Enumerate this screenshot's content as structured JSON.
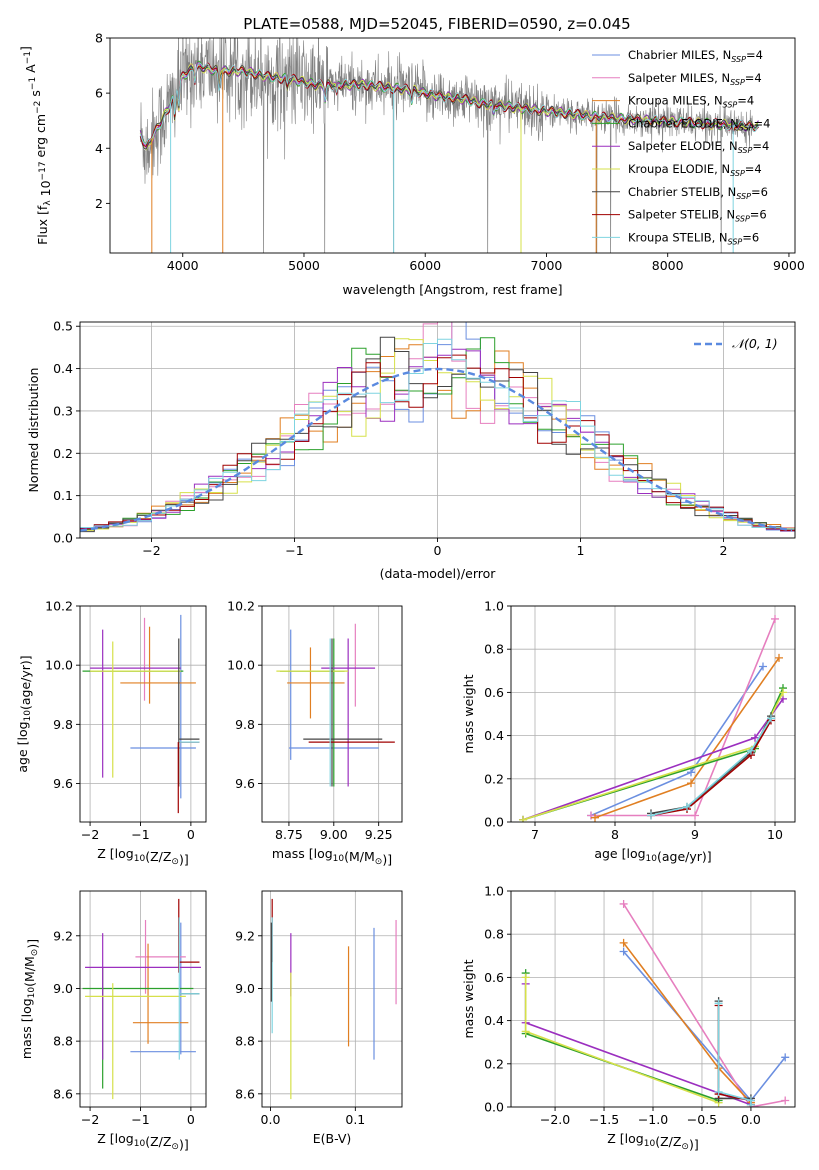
{
  "figure": {
    "title": "PLATE=0588, MJD=52045, FIBERID=0590, z=0.045"
  },
  "colors": {
    "Chabrier MILES": "#6b8fe0",
    "Salpeter MILES": "#e67fbf",
    "Kroupa MILES": "#e07f22",
    "Chabrier ELODIE": "#2ca02c",
    "Salpeter ELODIE": "#9b2fbf",
    "Kroupa ELODIE": "#d6e04a",
    "Chabrier STELIB": "#444444",
    "Salpeter STELIB": "#a00000",
    "Kroupa STELIB": "#7fd4e0",
    "gaussian": "#5a8ae0",
    "data_spectrum": "#7f7f7f"
  },
  "chart_data": [
    {
      "type": "line",
      "panel": "spectrum",
      "xlabel": "wavelength [Angstrom, rest frame]",
      "ylabel": "Flux [f_λ 10^-17 erg cm^-2 s^-1 A^-1]",
      "xlim": [
        3400,
        9050
      ],
      "ylim": [
        0.2,
        8
      ],
      "xticks": [
        4000,
        5000,
        6000,
        7000,
        8000,
        9000
      ],
      "yticks": [
        2,
        4,
        6,
        8
      ],
      "legend_position": "upper-right",
      "legend": [
        {
          "name": "Chabrier MILES",
          "nssp": "4"
        },
        {
          "name": "Salpeter MILES",
          "nssp": "4"
        },
        {
          "name": "Kroupa MILES",
          "nssp": "4"
        },
        {
          "name": "Chabrier ELODIE",
          "nssp": "4"
        },
        {
          "name": "Salpeter ELODIE",
          "nssp": "4"
        },
        {
          "name": "Kroupa ELODIE",
          "nssp": "4"
        },
        {
          "name": "Chabrier STELIB",
          "nssp": "6"
        },
        {
          "name": "Salpeter STELIB",
          "nssp": "6"
        },
        {
          "name": "Kroupa STELIB",
          "nssp": "6"
        }
      ],
      "continuum": {
        "x": [
          3650,
          3700,
          3800,
          3900,
          4000,
          4100,
          4200,
          4300,
          4500,
          4700,
          4900,
          5100,
          5300,
          5500,
          5700,
          5900,
          6100,
          6300,
          6500,
          6700,
          6900,
          7100,
          7300,
          7500,
          7700,
          7900,
          8100,
          8300,
          8500,
          8700
        ],
        "y": [
          4.5,
          4.0,
          4.8,
          5.6,
          6.6,
          7.0,
          6.9,
          6.8,
          6.8,
          6.6,
          6.5,
          6.3,
          6.3,
          6.3,
          6.2,
          6.1,
          5.9,
          5.8,
          5.6,
          5.5,
          5.4,
          5.3,
          5.2,
          5.1,
          5.05,
          5.0,
          4.95,
          4.9,
          4.85,
          4.8
        ]
      }
    },
    {
      "type": "histogram",
      "panel": "residuals",
      "xlabel": "(data-model)/error",
      "ylabel": "Normed distribution",
      "xlim": [
        -2.5,
        2.5
      ],
      "ylim": [
        0,
        0.51
      ],
      "xticks": [
        -2,
        -1,
        0,
        1,
        2
      ],
      "yticks": [
        0.0,
        0.1,
        0.2,
        0.3,
        0.4,
        0.5
      ],
      "grid": true,
      "legend_position": "upper-right",
      "reference_curve": "𝒩(0, 1)",
      "bin_width": 0.1,
      "series_order": [
        "Chabrier MILES",
        "Salpeter MILES",
        "Kroupa MILES",
        "Chabrier ELODIE",
        "Salpeter ELODIE",
        "Kroupa ELODIE",
        "Chabrier STELIB",
        "Salpeter STELIB",
        "Kroupa STELIB"
      ]
    },
    {
      "type": "scatter",
      "panel": "age_vs_Z",
      "xlabel": "Z [log10(Z/Z⊙)]",
      "ylabel": "age  [log10(age/yr)]",
      "xlim": [
        -2.2,
        0.3
      ],
      "ylim": [
        9.47,
        10.2
      ],
      "xticks": [
        -2,
        -1,
        0
      ],
      "yticks": [
        9.6,
        9.8,
        10.0,
        10.2
      ],
      "points": [
        {
          "series": "Chabrier MILES",
          "x": -0.55,
          "xerr": 0.65,
          "y": 9.72,
          "yerr": 0
        },
        {
          "series": "Chabrier MILES",
          "x": -0.2,
          "xerr": 0,
          "y": 9.86,
          "yerr": 0.31
        },
        {
          "series": "Salpeter MILES",
          "x": -0.92,
          "xerr": 0,
          "y": 10.02,
          "yerr": 0.14
        },
        {
          "series": "Kroupa MILES",
          "x": -0.65,
          "xerr": 0.75,
          "y": 9.94,
          "yerr": 0
        },
        {
          "series": "Kroupa MILES",
          "x": -0.82,
          "xerr": 0,
          "y": 10.0,
          "yerr": 0.13
        },
        {
          "series": "Chabrier ELODIE",
          "x": -1.15,
          "xerr": 1.0,
          "y": 9.98,
          "yerr": 0
        },
        {
          "series": "Salpeter ELODIE",
          "x": -1.1,
          "xerr": 0.9,
          "y": 9.99,
          "yerr": 0
        },
        {
          "series": "Salpeter ELODIE",
          "x": -1.75,
          "xerr": 0,
          "y": 9.87,
          "yerr": 0.25
        },
        {
          "series": "Kroupa ELODIE",
          "x": -1.1,
          "xerr": 0.9,
          "y": 9.98,
          "yerr": 0
        },
        {
          "series": "Kroupa ELODIE",
          "x": -1.55,
          "xerr": 0,
          "y": 9.85,
          "yerr": 0.23
        },
        {
          "series": "Chabrier STELIB",
          "x": -0.03,
          "xerr": 0.2,
          "y": 9.75,
          "yerr": 0
        },
        {
          "series": "Chabrier STELIB",
          "x": -0.24,
          "xerr": 0,
          "y": 9.84,
          "yerr": 0.25
        },
        {
          "series": "Salpeter STELIB",
          "x": -0.03,
          "xerr": 0.2,
          "y": 9.74,
          "yerr": 0
        },
        {
          "series": "Salpeter STELIB",
          "x": -0.25,
          "xerr": 0,
          "y": 9.62,
          "yerr": 0.12
        },
        {
          "series": "Kroupa STELIB",
          "x": -0.03,
          "xerr": 0.2,
          "y": 9.74,
          "yerr": 0
        }
      ]
    },
    {
      "type": "scatter",
      "panel": "age_vs_mass",
      "xlabel": "mass [log10(M/M⊙)]",
      "ylabel": "",
      "xlim": [
        8.6,
        9.38
      ],
      "ylim": [
        9.47,
        10.2
      ],
      "xticks": [
        8.75,
        9.0,
        9.25
      ],
      "yticks": [
        9.6,
        9.8,
        10.0,
        10.2
      ],
      "points": [
        {
          "series": "Chabrier MILES",
          "x": 9.0,
          "xerr": 0.25,
          "y": 9.72,
          "yerr": 0
        },
        {
          "series": "Chabrier MILES",
          "x": 8.76,
          "xerr": 0,
          "y": 9.9,
          "yerr": 0.22
        },
        {
          "series": "Salpeter MILES",
          "x": 9.12,
          "xerr": 0,
          "y": 10.0,
          "yerr": 0.14
        },
        {
          "series": "Kroupa MILES",
          "x": 8.9,
          "xerr": 0.16,
          "y": 9.94,
          "yerr": 0
        },
        {
          "series": "Kroupa MILES",
          "x": 8.87,
          "xerr": 0,
          "y": 9.94,
          "yerr": 0.12
        },
        {
          "series": "Chabrier ELODIE",
          "x": 8.88,
          "xerr": 0.18,
          "y": 9.98,
          "yerr": 0
        },
        {
          "series": "Chabrier ELODIE",
          "x": 9.0,
          "xerr": 0,
          "y": 9.84,
          "yerr": 0.25
        },
        {
          "series": "Salpeter ELODIE",
          "x": 9.08,
          "xerr": 0.15,
          "y": 9.99,
          "yerr": 0
        },
        {
          "series": "Salpeter ELODIE",
          "x": 9.08,
          "xerr": 0,
          "y": 9.84,
          "yerr": 0.25
        },
        {
          "series": "Kroupa ELODIE",
          "x": 8.88,
          "xerr": 0.2,
          "y": 9.98,
          "yerr": 0
        },
        {
          "series": "Chabrier STELIB",
          "x": 9.05,
          "xerr": 0.22,
          "y": 9.75,
          "yerr": 0
        },
        {
          "series": "Chabrier STELIB",
          "x": 8.99,
          "xerr": 0,
          "y": 9.84,
          "yerr": 0.25
        },
        {
          "series": "Salpeter STELIB",
          "x": 9.1,
          "xerr": 0.24,
          "y": 9.74,
          "yerr": 0
        },
        {
          "series": "Kroupa STELIB",
          "x": 8.98,
          "xerr": 0,
          "y": 9.84,
          "yerr": 0.25
        }
      ]
    },
    {
      "type": "line",
      "panel": "massweight_vs_age",
      "xlabel": "age  [log10(age/yr)]",
      "ylabel": "mass weight",
      "xlim": [
        6.7,
        10.25
      ],
      "ylim": [
        0,
        1.0
      ],
      "xticks": [
        7,
        8,
        9,
        10
      ],
      "yticks": [
        0.0,
        0.2,
        0.4,
        0.6,
        0.8,
        1.0
      ],
      "grid": true,
      "series": [
        {
          "name": "Chabrier MILES",
          "x": [
            7.7,
            8.95,
            9.85
          ],
          "y": [
            0.03,
            0.23,
            0.72
          ]
        },
        {
          "name": "Salpeter MILES",
          "x": [
            7.7,
            9.0,
            10.0
          ],
          "y": [
            0.03,
            0.03,
            0.94
          ]
        },
        {
          "name": "Kroupa MILES",
          "x": [
            7.75,
            8.95,
            10.05
          ],
          "y": [
            0.02,
            0.18,
            0.76
          ]
        },
        {
          "name": "Chabrier ELODIE",
          "x": [
            6.85,
            9.75,
            10.1
          ],
          "y": [
            0.01,
            0.34,
            0.62
          ]
        },
        {
          "name": "Salpeter ELODIE",
          "x": [
            6.85,
            9.75,
            10.1
          ],
          "y": [
            0.01,
            0.39,
            0.57
          ]
        },
        {
          "name": "Kroupa ELODIE",
          "x": [
            6.85,
            9.75,
            10.1
          ],
          "y": [
            0.01,
            0.35,
            0.6
          ]
        },
        {
          "name": "Chabrier STELIB",
          "x": [
            8.45,
            8.9,
            9.7,
            9.95
          ],
          "y": [
            0.04,
            0.07,
            0.32,
            0.49
          ]
        },
        {
          "name": "Salpeter STELIB",
          "x": [
            8.45,
            8.9,
            9.7,
            9.95
          ],
          "y": [
            0.03,
            0.06,
            0.31,
            0.47
          ]
        },
        {
          "name": "Kroupa STELIB",
          "x": [
            8.45,
            8.9,
            9.7,
            9.95
          ],
          "y": [
            0.03,
            0.07,
            0.33,
            0.48
          ]
        }
      ]
    },
    {
      "type": "scatter",
      "panel": "mass_vs_Z",
      "xlabel": "Z [log10(Z/Z⊙)]",
      "ylabel": "mass [log10(M/M⊙)]",
      "xlim": [
        -2.2,
        0.3
      ],
      "ylim": [
        8.55,
        9.37
      ],
      "xticks": [
        -2,
        -1,
        0
      ],
      "yticks": [
        8.6,
        8.8,
        9.0,
        9.2
      ],
      "points": [
        {
          "series": "Chabrier MILES",
          "x": -0.55,
          "xerr": 0.65,
          "y": 8.76,
          "yerr": 0
        },
        {
          "series": "Chabrier MILES",
          "x": -0.2,
          "xerr": 0,
          "y": 9.0,
          "yerr": 0.25
        },
        {
          "series": "Salpeter MILES",
          "x": -0.6,
          "xerr": 0.5,
          "y": 9.12,
          "yerr": 0
        },
        {
          "series": "Salpeter MILES",
          "x": -0.9,
          "xerr": 0,
          "y": 9.12,
          "yerr": 0.14
        },
        {
          "series": "Kroupa MILES",
          "x": -0.6,
          "xerr": 0.55,
          "y": 8.87,
          "yerr": 0
        },
        {
          "series": "Kroupa MILES",
          "x": -0.85,
          "xerr": 0,
          "y": 8.98,
          "yerr": 0.19
        },
        {
          "series": "Chabrier ELODIE",
          "x": -1.05,
          "xerr": 1.1,
          "y": 9.0,
          "yerr": 0
        },
        {
          "series": "Chabrier ELODIE",
          "x": -1.75,
          "xerr": 0,
          "y": 8.85,
          "yerr": 0.23
        },
        {
          "series": "Salpeter ELODIE",
          "x": -0.95,
          "xerr": 1.15,
          "y": 9.08,
          "yerr": 0
        },
        {
          "series": "Salpeter ELODIE",
          "x": -1.75,
          "xerr": 0,
          "y": 8.97,
          "yerr": 0.24
        },
        {
          "series": "Kroupa ELODIE",
          "x": -1.1,
          "xerr": 1.0,
          "y": 8.97,
          "yerr": 0
        },
        {
          "series": "Kroupa ELODIE",
          "x": -1.55,
          "xerr": 0,
          "y": 8.8,
          "yerr": 0.22
        },
        {
          "series": "Chabrier STELIB",
          "x": -0.03,
          "xerr": 0.2,
          "y": 8.98,
          "yerr": 0
        },
        {
          "series": "Salpeter STELIB",
          "x": -0.03,
          "xerr": 0.2,
          "y": 9.1,
          "yerr": 0
        },
        {
          "series": "Salpeter STELIB",
          "x": -0.24,
          "xerr": 0,
          "y": 9.2,
          "yerr": 0.14
        },
        {
          "series": "Kroupa STELIB",
          "x": -0.03,
          "xerr": 0.2,
          "y": 8.98,
          "yerr": 0
        },
        {
          "series": "Kroupa STELIB",
          "x": -0.23,
          "xerr": 0,
          "y": 9.0,
          "yerr": 0.27
        }
      ]
    },
    {
      "type": "scatter",
      "panel": "mass_vs_ebv",
      "xlabel": "E(B-V)",
      "ylabel": "",
      "xlim": [
        -0.01,
        0.155
      ],
      "ylim": [
        8.55,
        9.37
      ],
      "xticks": [
        0.0,
        0.1
      ],
      "yticks": [
        8.6,
        8.8,
        9.0,
        9.2
      ],
      "points": [
        {
          "series": "Salpeter MILES",
          "x": 0.148,
          "xerr": 0,
          "y": 9.1,
          "yerr": 0.16
        },
        {
          "series": "Chabrier MILES",
          "x": 0.122,
          "xerr": 0,
          "y": 8.98,
          "yerr": 0.25
        },
        {
          "series": "Kroupa MILES",
          "x": 0.092,
          "xerr": 0,
          "y": 8.97,
          "yerr": 0.19
        },
        {
          "series": "Salpeter ELODIE",
          "x": 0.024,
          "xerr": 0,
          "y": 9.09,
          "yerr": 0.12
        },
        {
          "series": "Kroupa ELODIE",
          "x": 0.024,
          "xerr": 0,
          "y": 8.82,
          "yerr": 0.24
        },
        {
          "series": "Salpeter STELIB",
          "x": 0.002,
          "xerr": 0,
          "y": 9.22,
          "yerr": 0.12
        },
        {
          "series": "Kroupa STELIB",
          "x": 0.002,
          "xerr": 0,
          "y": 9.05,
          "yerr": 0.22
        },
        {
          "series": "Chabrier STELIB",
          "x": 0.001,
          "xerr": 0,
          "y": 9.1,
          "yerr": 0.15
        }
      ]
    },
    {
      "type": "line",
      "panel": "massweight_vs_Z",
      "xlabel": "Z [log10(Z/Z⊙)]",
      "ylabel": "mass weight",
      "xlim": [
        -2.45,
        0.45
      ],
      "ylim": [
        0,
        1.0
      ],
      "xticks": [
        -2.0,
        -1.5,
        -1.0,
        -0.5,
        0.0
      ],
      "yticks": [
        0.0,
        0.2,
        0.4,
        0.6,
        0.8,
        1.0
      ],
      "grid": true,
      "series": [
        {
          "name": "Chabrier MILES",
          "x": [
            -1.3,
            0.0,
            0.35
          ],
          "y": [
            0.72,
            0.03,
            0.23
          ]
        },
        {
          "name": "Salpeter MILES",
          "x": [
            -1.3,
            0.0,
            0.35
          ],
          "y": [
            0.94,
            0.0,
            0.03
          ]
        },
        {
          "name": "Kroupa MILES",
          "x": [
            -1.3,
            -0.33,
            0.0
          ],
          "y": [
            0.76,
            0.18,
            0.02
          ]
        },
        {
          "name": "Chabrier ELODIE",
          "x": [
            -2.3,
            -2.3,
            -0.33
          ],
          "y": [
            0.62,
            0.34,
            0.03
          ]
        },
        {
          "name": "Salpeter ELODIE",
          "x": [
            -2.3,
            -2.3,
            0.0
          ],
          "y": [
            0.57,
            0.39,
            0.01
          ]
        },
        {
          "name": "Kroupa ELODIE",
          "x": [
            -2.3,
            -2.3,
            -0.33
          ],
          "y": [
            0.6,
            0.35,
            0.02
          ]
        },
        {
          "name": "Chabrier STELIB",
          "x": [
            -0.33,
            -0.33,
            0.0,
            0.0
          ],
          "y": [
            0.49,
            0.04,
            0.04,
            0.01
          ]
        },
        {
          "name": "Salpeter STELIB",
          "x": [
            -0.33,
            -0.33,
            0.0
          ],
          "y": [
            0.47,
            0.06,
            0.03
          ]
        },
        {
          "name": "Kroupa STELIB",
          "x": [
            -0.33,
            -0.33,
            0.0,
            0.0
          ],
          "y": [
            0.48,
            0.07,
            0.03,
            0.01
          ]
        }
      ]
    }
  ]
}
